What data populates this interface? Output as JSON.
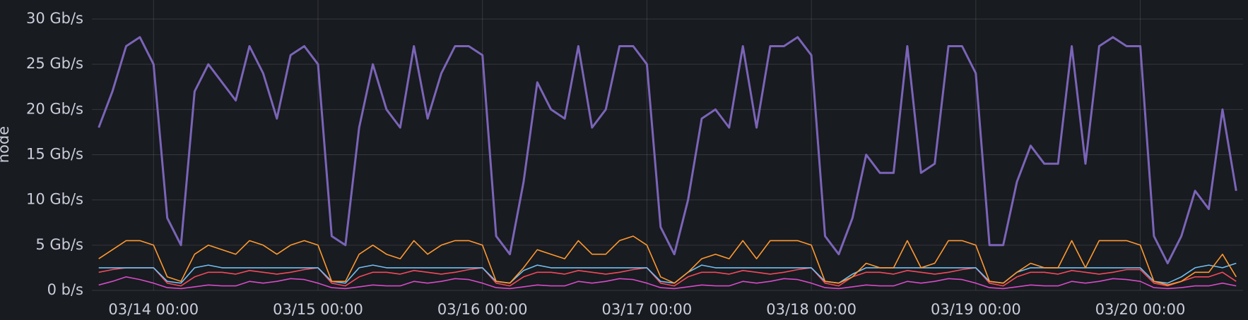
{
  "chart_data": {
    "type": "line",
    "y_label": "node",
    "x": [
      "03/13 16:00",
      "03/13 18:00",
      "03/13 20:00",
      "03/13 22:00",
      "03/14 00:00",
      "03/14 02:00",
      "03/14 04:00",
      "03/14 06:00",
      "03/14 08:00",
      "03/14 10:00",
      "03/14 12:00",
      "03/14 14:00",
      "03/14 16:00",
      "03/14 18:00",
      "03/14 20:00",
      "03/14 22:00",
      "03/15 00:00",
      "03/15 02:00",
      "03/15 04:00",
      "03/15 06:00",
      "03/15 08:00",
      "03/15 10:00",
      "03/15 12:00",
      "03/15 14:00",
      "03/15 16:00",
      "03/15 18:00",
      "03/15 20:00",
      "03/15 22:00",
      "03/16 00:00",
      "03/16 02:00",
      "03/16 04:00",
      "03/16 06:00",
      "03/16 08:00",
      "03/16 10:00",
      "03/16 12:00",
      "03/16 14:00",
      "03/16 16:00",
      "03/16 18:00",
      "03/16 20:00",
      "03/16 22:00",
      "03/17 00:00",
      "03/17 02:00",
      "03/17 04:00",
      "03/17 06:00",
      "03/17 08:00",
      "03/17 10:00",
      "03/17 12:00",
      "03/17 14:00",
      "03/17 16:00",
      "03/17 18:00",
      "03/17 20:00",
      "03/17 22:00",
      "03/18 00:00",
      "03/18 02:00",
      "03/18 04:00",
      "03/18 06:00",
      "03/18 08:00",
      "03/18 10:00",
      "03/18 12:00",
      "03/18 14:00",
      "03/18 16:00",
      "03/18 18:00",
      "03/18 20:00",
      "03/18 22:00",
      "03/19 00:00",
      "03/19 02:00",
      "03/19 04:00",
      "03/19 06:00",
      "03/19 08:00",
      "03/19 10:00",
      "03/19 12:00",
      "03/19 14:00",
      "03/19 16:00",
      "03/19 18:00",
      "03/19 20:00",
      "03/19 22:00",
      "03/20 00:00",
      "03/20 02:00",
      "03/20 04:00",
      "03/20 06:00",
      "03/20 08:00",
      "03/20 10:00",
      "03/20 12:00",
      "03/20 14:00"
    ],
    "series": [
      {
        "color": "#7b64b8",
        "values": [
          18,
          22,
          27,
          28,
          25,
          8,
          5,
          22,
          25,
          23,
          21,
          27,
          24,
          19,
          26,
          27,
          25,
          6,
          5,
          18,
          25,
          20,
          18,
          27,
          19,
          24,
          27,
          27,
          26,
          6,
          4,
          12,
          23,
          20,
          19,
          27,
          18,
          20,
          27,
          27,
          25,
          7,
          4,
          10,
          19,
          20,
          18,
          27,
          18,
          27,
          27,
          28,
          26,
          6,
          4,
          8,
          15,
          13,
          13,
          27,
          13,
          14,
          27,
          27,
          24,
          5,
          5,
          12,
          16,
          14,
          14,
          27,
          14,
          27,
          28,
          27,
          27,
          6,
          3,
          6,
          11,
          9,
          20,
          11
        ]
      },
      {
        "color": "#ff9830",
        "values": [
          3.5,
          4.5,
          5.5,
          5.5,
          5,
          1.5,
          1,
          4,
          5,
          4.5,
          4,
          5.5,
          5,
          4,
          5,
          5.5,
          5,
          1,
          1,
          4,
          5,
          4,
          3.5,
          5.5,
          4,
          5,
          5.5,
          5.5,
          5,
          1,
          0.8,
          2.5,
          4.5,
          4,
          3.5,
          5.5,
          4,
          4,
          5.5,
          6,
          5,
          1.5,
          0.8,
          2,
          3.5,
          4,
          3.5,
          5.5,
          3.5,
          5.5,
          5.5,
          5.5,
          5,
          1,
          0.8,
          1.5,
          3,
          2.5,
          2.5,
          5.5,
          2.5,
          3,
          5.5,
          5.5,
          5,
          1,
          0.8,
          2,
          3,
          2.5,
          2.5,
          5.5,
          2.5,
          5.5,
          5.5,
          5.5,
          5,
          1,
          0.6,
          1,
          2,
          2,
          4,
          1.5
        ]
      },
      {
        "color": "#73bff2",
        "values": [
          2.5,
          2.5,
          2.5,
          2.5,
          2.5,
          1,
          0.8,
          2.5,
          2.8,
          2.5,
          2.5,
          2.5,
          2.5,
          2.5,
          2.5,
          2.5,
          2.5,
          1,
          0.8,
          2.5,
          2.8,
          2.5,
          2.5,
          2.5,
          2.5,
          2.5,
          2.5,
          2.5,
          2.5,
          1,
          0.8,
          2.2,
          2.8,
          2.5,
          2.5,
          2.5,
          2.5,
          2.5,
          2.5,
          2.5,
          2.5,
          1,
          0.8,
          2,
          2.8,
          2.5,
          2.5,
          2.5,
          2.5,
          2.5,
          2.5,
          2.5,
          2.5,
          1,
          0.8,
          1.8,
          2.5,
          2.5,
          2.5,
          2.5,
          2.5,
          2.5,
          2.5,
          2.5,
          2.5,
          1,
          0.8,
          2,
          2.5,
          2.5,
          2.5,
          2.5,
          2.5,
          2.5,
          2.5,
          2.5,
          2.5,
          1,
          0.8,
          1.5,
          2.5,
          2.8,
          2.5,
          3
        ]
      },
      {
        "color": "#f2495c",
        "values": [
          2,
          2.3,
          2.5,
          2.5,
          2.5,
          0.8,
          0.5,
          1.5,
          2,
          2,
          1.8,
          2.2,
          2,
          1.8,
          2,
          2.3,
          2.5,
          0.8,
          0.5,
          1.5,
          2,
          2,
          1.8,
          2.2,
          2,
          1.8,
          2,
          2.3,
          2.5,
          0.8,
          0.5,
          1.5,
          2,
          2,
          1.8,
          2.2,
          2,
          1.8,
          2,
          2.3,
          2.5,
          0.8,
          0.5,
          1.5,
          2,
          2,
          1.8,
          2.2,
          2,
          1.8,
          2,
          2.3,
          2.5,
          0.8,
          0.5,
          1.5,
          2,
          2,
          1.8,
          2.2,
          2,
          1.8,
          2,
          2.3,
          2.5,
          0.8,
          0.5,
          1.5,
          2,
          2,
          1.8,
          2.2,
          2,
          1.8,
          2,
          2.3,
          2.3,
          0.8,
          0.5,
          1,
          1.5,
          1.5,
          2,
          1
        ]
      },
      {
        "color": "#d54bc9",
        "values": [
          0.6,
          1,
          1.5,
          1.2,
          0.8,
          0.3,
          0.2,
          0.4,
          0.6,
          0.5,
          0.5,
          1,
          0.8,
          1,
          1.3,
          1.2,
          0.8,
          0.3,
          0.2,
          0.4,
          0.6,
          0.5,
          0.5,
          1,
          0.8,
          1,
          1.3,
          1.2,
          0.8,
          0.3,
          0.2,
          0.4,
          0.6,
          0.5,
          0.5,
          1,
          0.8,
          1,
          1.3,
          1.2,
          0.8,
          0.3,
          0.2,
          0.4,
          0.6,
          0.5,
          0.5,
          1,
          0.8,
          1,
          1.3,
          1.2,
          0.8,
          0.3,
          0.2,
          0.4,
          0.6,
          0.5,
          0.5,
          1,
          0.8,
          1,
          1.3,
          1.2,
          0.8,
          0.3,
          0.2,
          0.4,
          0.6,
          0.5,
          0.5,
          1,
          0.8,
          1,
          1.3,
          1.2,
          1,
          0.3,
          0.2,
          0.3,
          0.5,
          0.5,
          0.8,
          0.5
        ]
      }
    ],
    "xlim": [
      "03/13 15:00",
      "03/20 15:00"
    ],
    "xticks": [
      "03/14 00:00",
      "03/15 00:00",
      "03/16 00:00",
      "03/17 00:00",
      "03/18 00:00",
      "03/19 00:00",
      "03/20 00:00"
    ],
    "ylim": [
      0,
      30
    ],
    "yticks": [
      {
        "value": 0,
        "label": "0 b/s"
      },
      {
        "value": 5,
        "label": "5 Gb/s"
      },
      {
        "value": 10,
        "label": "10 Gb/s"
      },
      {
        "value": 15,
        "label": "15 Gb/s"
      },
      {
        "value": 20,
        "label": "20 Gb/s"
      },
      {
        "value": 25,
        "label": "25 Gb/s"
      },
      {
        "value": 30,
        "label": "30 Gb/s"
      }
    ],
    "grid": true
  }
}
